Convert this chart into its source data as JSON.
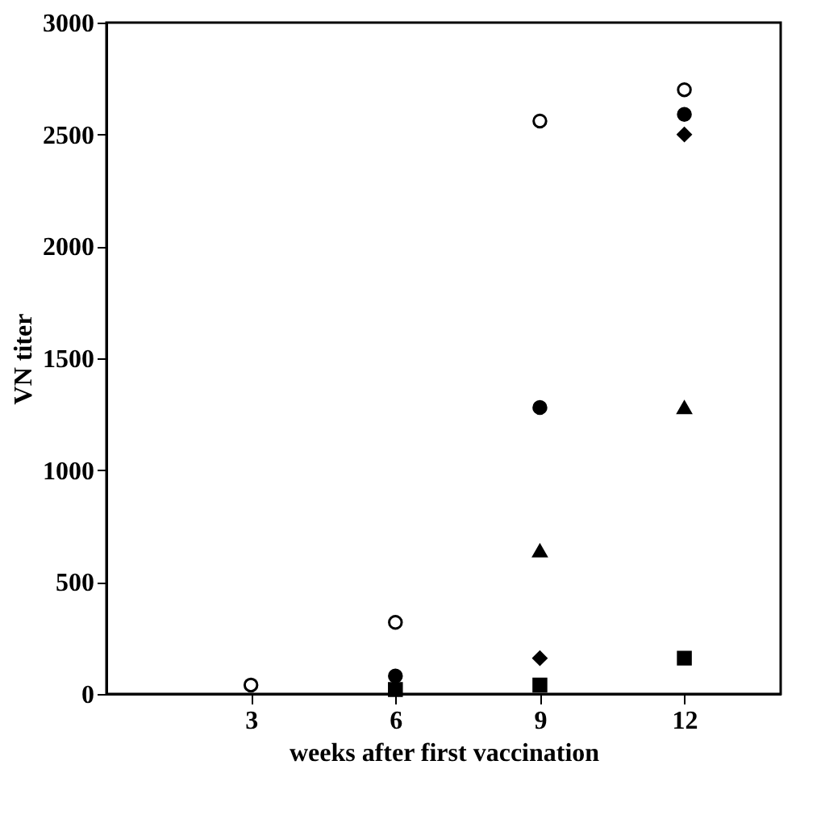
{
  "chart_data": {
    "type": "scatter",
    "xlabel": "weeks after first vaccination",
    "ylabel": "VN titer",
    "xlim": [
      0,
      14
    ],
    "xticks": [
      3,
      6,
      9,
      12
    ],
    "ylim": [
      0,
      3000
    ],
    "yticks": [
      0,
      500,
      1000,
      1500,
      2000,
      2500,
      3000
    ],
    "grid": false,
    "legend": false,
    "x": [
      3,
      6,
      9,
      12
    ],
    "series": [
      {
        "color": "#ffffff",
        "marker": "circle",
        "values": [
          40,
          320,
          2560,
          2700
        ]
      },
      {
        "color": "#000000",
        "marker": "circle",
        "values": [
          null,
          80,
          1280,
          2590
        ]
      },
      {
        "color": "#000000",
        "marker": "triangle",
        "values": [
          null,
          null,
          640,
          1280
        ]
      },
      {
        "color": "#000000",
        "marker": "diamond",
        "values": [
          null,
          null,
          160,
          2500
        ]
      },
      {
        "color": "#000000",
        "marker": "square",
        "values": [
          null,
          20,
          40,
          160
        ]
      }
    ]
  }
}
